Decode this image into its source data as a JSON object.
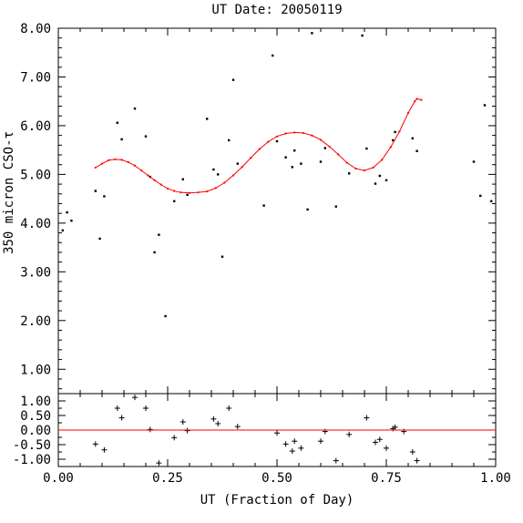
{
  "title": "UT Date: 20050119",
  "chart_data": [
    {
      "type": "scatter",
      "title": "UT Date: 20050119",
      "xlabel": "",
      "ylabel": "350 micron CSO-τ",
      "xlim": [
        0.0,
        1.0
      ],
      "ylim": [
        0.5,
        8.0
      ],
      "yticks": [
        "1.00",
        "2.00",
        "3.00",
        "4.00",
        "5.00",
        "6.00",
        "7.00",
        "8.00"
      ],
      "grid": false,
      "series": [
        {
          "color": "#000000",
          "marker": "dot",
          "points": [
            [
              0.01,
              3.85
            ],
            [
              0.02,
              4.22
            ],
            [
              0.03,
              4.05
            ],
            [
              0.085,
              4.66
            ],
            [
              0.095,
              3.68
            ],
            [
              0.105,
              4.55
            ],
            [
              0.135,
              6.06
            ],
            [
              0.145,
              5.72
            ],
            [
              0.175,
              6.35
            ],
            [
              0.2,
              5.78
            ],
            [
              0.21,
              4.95
            ],
            [
              0.22,
              3.4
            ],
            [
              0.23,
              3.76
            ],
            [
              0.245,
              2.09
            ],
            [
              0.265,
              4.45
            ],
            [
              0.285,
              4.9
            ],
            [
              0.295,
              4.58
            ],
            [
              0.34,
              6.14
            ],
            [
              0.355,
              5.1
            ],
            [
              0.365,
              5.0
            ],
            [
              0.375,
              3.31
            ],
            [
              0.39,
              5.7
            ],
            [
              0.4,
              6.94
            ],
            [
              0.41,
              5.22
            ],
            [
              0.47,
              4.36
            ],
            [
              0.49,
              7.44
            ],
            [
              0.5,
              5.68
            ],
            [
              0.52,
              5.35
            ],
            [
              0.535,
              5.15
            ],
            [
              0.54,
              5.49
            ],
            [
              0.555,
              5.22
            ],
            [
              0.57,
              4.28
            ],
            [
              0.58,
              7.9
            ],
            [
              0.6,
              5.26
            ],
            [
              0.61,
              5.54
            ],
            [
              0.635,
              4.34
            ],
            [
              0.665,
              5.02
            ],
            [
              0.695,
              7.85
            ],
            [
              0.705,
              5.53
            ],
            [
              0.725,
              4.81
            ],
            [
              0.735,
              4.97
            ],
            [
              0.75,
              4.88
            ],
            [
              0.765,
              5.7
            ],
            [
              0.77,
              5.87
            ],
            [
              0.81,
              5.74
            ],
            [
              0.82,
              5.48
            ],
            [
              0.95,
              5.26
            ],
            [
              0.965,
              4.56
            ],
            [
              0.975,
              6.42
            ],
            [
              0.99,
              4.45
            ]
          ]
        },
        {
          "color": "#ff0000",
          "marker": "line",
          "points": [
            [
              0.085,
              5.14
            ],
            [
              0.1,
              5.22
            ],
            [
              0.115,
              5.29
            ],
            [
              0.13,
              5.31
            ],
            [
              0.145,
              5.3
            ],
            [
              0.16,
              5.25
            ],
            [
              0.175,
              5.18
            ],
            [
              0.19,
              5.08
            ],
            [
              0.205,
              4.98
            ],
            [
              0.22,
              4.88
            ],
            [
              0.235,
              4.79
            ],
            [
              0.25,
              4.71
            ],
            [
              0.265,
              4.66
            ],
            [
              0.28,
              4.63
            ],
            [
              0.3,
              4.62
            ],
            [
              0.32,
              4.63
            ],
            [
              0.34,
              4.65
            ],
            [
              0.36,
              4.72
            ],
            [
              0.38,
              4.83
            ],
            [
              0.4,
              4.98
            ],
            [
              0.42,
              5.15
            ],
            [
              0.44,
              5.34
            ],
            [
              0.46,
              5.52
            ],
            [
              0.48,
              5.67
            ],
            [
              0.5,
              5.78
            ],
            [
              0.52,
              5.84
            ],
            [
              0.54,
              5.86
            ],
            [
              0.56,
              5.85
            ],
            [
              0.58,
              5.8
            ],
            [
              0.6,
              5.71
            ],
            [
              0.62,
              5.57
            ],
            [
              0.64,
              5.41
            ],
            [
              0.66,
              5.24
            ],
            [
              0.68,
              5.12
            ],
            [
              0.7,
              5.08
            ],
            [
              0.72,
              5.14
            ],
            [
              0.74,
              5.3
            ],
            [
              0.76,
              5.56
            ],
            [
              0.78,
              5.88
            ],
            [
              0.8,
              6.26
            ],
            [
              0.815,
              6.5
            ],
            [
              0.82,
              6.55
            ],
            [
              0.83,
              6.53
            ]
          ]
        }
      ]
    },
    {
      "type": "scatter",
      "title": "",
      "xlabel": "UT (Fraction of Day)",
      "ylabel": "",
      "xlim": [
        0.0,
        1.0
      ],
      "ylim": [
        -1.25,
        1.25
      ],
      "xticks": [
        "0.00",
        "0.25",
        "0.50",
        "0.75",
        "1.00"
      ],
      "yticks": [
        "-1.00",
        "-0.50",
        "0.00",
        "0.50",
        "1.00"
      ],
      "grid": false,
      "series": [
        {
          "color": "#000000",
          "marker": "plus",
          "points": [
            [
              0.085,
              -0.48
            ],
            [
              0.105,
              -0.68
            ],
            [
              0.135,
              0.75
            ],
            [
              0.145,
              0.42
            ],
            [
              0.175,
              1.12
            ],
            [
              0.2,
              0.75
            ],
            [
              0.21,
              0.02
            ],
            [
              0.23,
              -1.13
            ],
            [
              0.265,
              -0.26
            ],
            [
              0.285,
              0.28
            ],
            [
              0.295,
              -0.02
            ],
            [
              0.355,
              0.38
            ],
            [
              0.365,
              0.22
            ],
            [
              0.39,
              0.75
            ],
            [
              0.41,
              0.12
            ],
            [
              0.5,
              -0.1
            ],
            [
              0.52,
              -0.48
            ],
            [
              0.535,
              -0.72
            ],
            [
              0.54,
              -0.38
            ],
            [
              0.555,
              -0.62
            ],
            [
              0.6,
              -0.38
            ],
            [
              0.61,
              -0.05
            ],
            [
              0.635,
              -1.05
            ],
            [
              0.665,
              -0.15
            ],
            [
              0.705,
              0.42
            ],
            [
              0.725,
              -0.42
            ],
            [
              0.735,
              -0.32
            ],
            [
              0.75,
              -0.62
            ],
            [
              0.765,
              0.05
            ],
            [
              0.77,
              0.1
            ],
            [
              0.79,
              -0.05
            ],
            [
              0.81,
              -0.75
            ],
            [
              0.82,
              -1.05
            ]
          ]
        },
        {
          "color": "#ff0000",
          "marker": "line",
          "points": [
            [
              0.0,
              0.0
            ],
            [
              1.0,
              0.0
            ]
          ]
        }
      ]
    }
  ]
}
